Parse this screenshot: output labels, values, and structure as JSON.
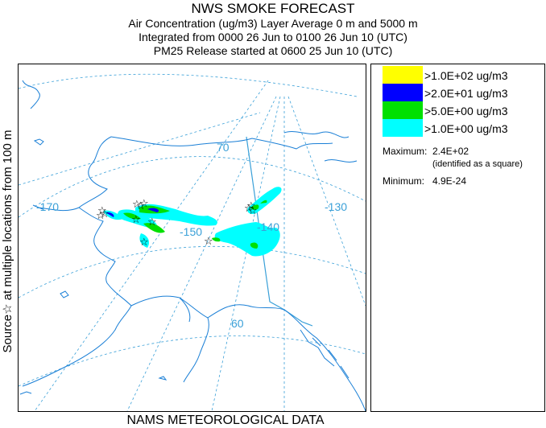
{
  "header": {
    "title": "NWS SMOKE FORECAST",
    "line1": "Air Concentration (ug/m3) Layer Average    0 m and  5000 m",
    "line2": "Integrated from 0000 26 Jun to 0100 26 Jun 10 (UTC)",
    "line3": "PM25 Release started at 0600 25 Jun 10 (UTC)"
  },
  "side_label": "Source☆ at multiple locations  from  100 m",
  "footer": "NAMS METEOROLOGICAL DATA",
  "map": {
    "lat_labels": [
      "70",
      "60"
    ],
    "lon_labels": [
      "-170",
      "-150",
      "-140",
      "-130"
    ],
    "colors": {
      "coast": "#1a7fd6",
      "grid": "#3aa0d8",
      "border": "#3aa0d8"
    }
  },
  "legend": {
    "entries": [
      {
        "label": ">1.0E+02 ug/m3",
        "color": "#ffff00"
      },
      {
        "label": ">2.0E+01 ug/m3",
        "color": "#0000ff"
      },
      {
        "label": ">5.0E+00 ug/m3",
        "color": "#00e000"
      },
      {
        "label": ">1.0E+00 ug/m3",
        "color": "#00ffff"
      }
    ],
    "maximum_label": "Maximum:",
    "maximum_value": "2.4E+02",
    "maximum_note": "(identified as a square)",
    "minimum_label": "Minimum:",
    "minimum_value": "4.9E-24"
  }
}
